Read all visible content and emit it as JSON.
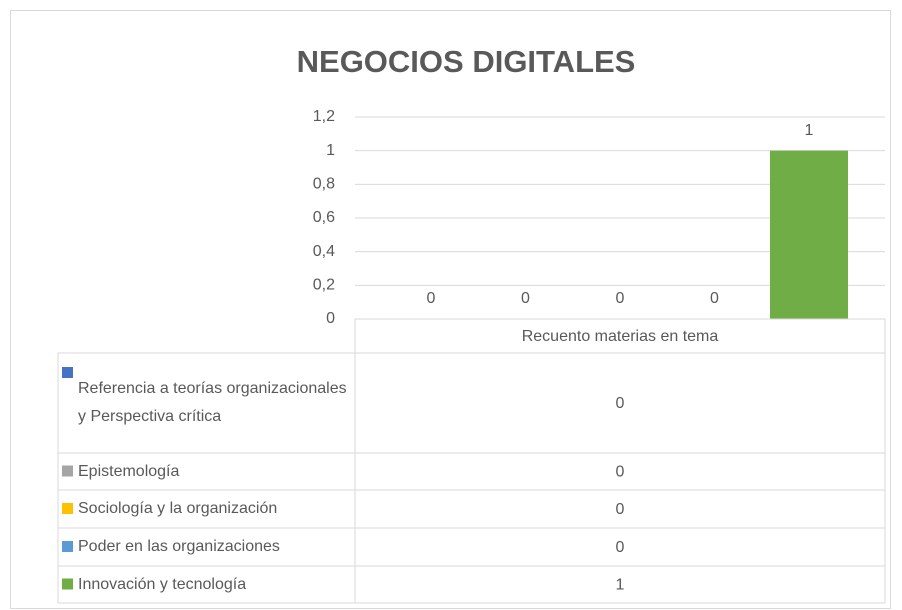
{
  "chart_data": {
    "type": "bar",
    "title": "NEGOCIOS DIGITALES",
    "categories": [
      "Recuento materias en tema"
    ],
    "series": [
      {
        "name": "Referencia a teorías organizacionales y Perspectiva crítica",
        "color": "#4472c4",
        "values": [
          0
        ]
      },
      {
        "name": "Epistemología",
        "color": "#a5a5a5",
        "values": [
          0
        ]
      },
      {
        "name": "Sociología y la organización",
        "color": "#ffc000",
        "values": [
          0
        ]
      },
      {
        "name": "Poder en las organizaciones",
        "color": "#5b9bd5",
        "values": [
          0
        ]
      },
      {
        "name": "Innovación y tecnología",
        "color": "#70ad47",
        "values": [
          1
        ]
      }
    ],
    "ylim": [
      0,
      1.2
    ],
    "yticks": [
      0,
      {
        "value": 0.2,
        "label": "0,2"
      },
      {
        "value": 0.4,
        "label": "0,4"
      },
      {
        "value": 0.6,
        "label": "0,6"
      },
      {
        "value": 0.8,
        "label": "0,8"
      },
      1,
      {
        "value": 1.2,
        "label": "1,2"
      }
    ],
    "grid": true,
    "data_table": true
  }
}
